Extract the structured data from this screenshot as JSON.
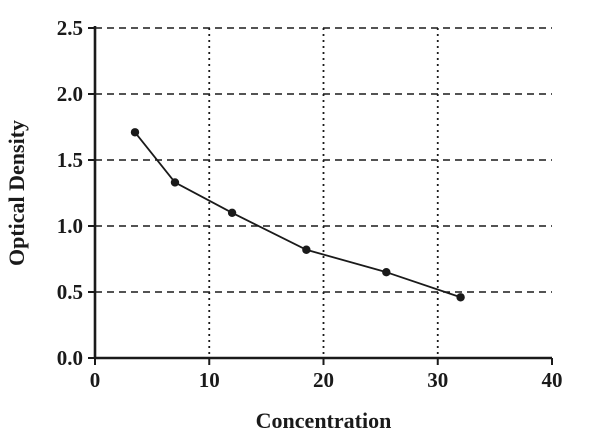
{
  "chart_data": {
    "type": "line",
    "title": "",
    "xlabel": "Concentration",
    "ylabel": "Optical Density",
    "xlim": [
      0,
      40
    ],
    "ylim": [
      0,
      2.5
    ],
    "xticks": [
      0,
      10,
      20,
      30,
      40
    ],
    "xtick_labels": [
      "0",
      "10",
      "20",
      "30",
      "40"
    ],
    "yticks": [
      0,
      0.5,
      1,
      1.5,
      2,
      2.5
    ],
    "ytick_labels": [
      "0.0",
      "0.5",
      "1.0",
      "1.5",
      "2.0",
      "2.5"
    ],
    "grid": {
      "horizontal_lines_at": [
        0.5,
        1,
        1.5,
        2,
        2.5
      ],
      "vertical_lines_at": [
        10,
        20,
        30
      ],
      "horizontal_style": "dashed",
      "vertical_style": "dotted"
    },
    "legend": "none",
    "series": [
      {
        "name": "Optical Density",
        "marker": "filled-circle",
        "color": "#1a1a1a",
        "x": [
          3.5,
          7,
          12,
          18.5,
          25.5,
          32
        ],
        "y": [
          1.71,
          1.33,
          1.1,
          0.82,
          0.65,
          0.46
        ]
      }
    ]
  }
}
